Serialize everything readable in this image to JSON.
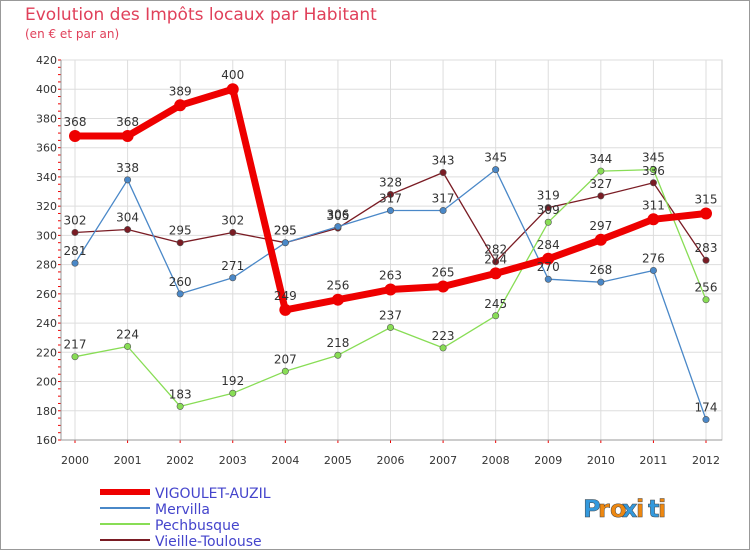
{
  "chart_data": {
    "type": "line",
    "title": "Evolution des Impôts locaux par Habitant",
    "subtitle": "(en € et par an)",
    "xlabel": "",
    "ylabel": "",
    "x": [
      "2000",
      "2001",
      "2002",
      "2003",
      "2004",
      "2005",
      "2006",
      "2007",
      "2008",
      "2009",
      "2010",
      "2011",
      "2012"
    ],
    "ylim": [
      160,
      420
    ],
    "yticks": [
      160,
      180,
      200,
      220,
      240,
      260,
      280,
      300,
      320,
      340,
      360,
      380,
      400,
      420
    ],
    "grid": true,
    "legend_position": "bottom-left",
    "series": [
      {
        "name": "Vieille-Toulouse",
        "color": "#7a1c24",
        "values": [
          302,
          304,
          295,
          302,
          295,
          305,
          328,
          343,
          282,
          319,
          327,
          336,
          283
        ]
      },
      {
        "name": "Mervilla",
        "color": "#4a88c8",
        "values": [
          281,
          338,
          260,
          271,
          295,
          306,
          317,
          317,
          345,
          270,
          268,
          276,
          174
        ]
      },
      {
        "name": "Pechbusque",
        "color": "#88dd55",
        "values": [
          217,
          224,
          183,
          192,
          207,
          218,
          237,
          223,
          245,
          309,
          344,
          345,
          256
        ]
      },
      {
        "name": "VIGOULET-AUZIL",
        "color": "#ee0000",
        "values": [
          368,
          368,
          389,
          400,
          249,
          256,
          263,
          265,
          274,
          284,
          297,
          311,
          315
        ]
      }
    ],
    "legend": [
      "VIGOULET-AUZIL",
      "Mervilla",
      "Pechbusque",
      "Vieille-Toulouse"
    ]
  },
  "colors": {
    "title": "#e0405a",
    "axis_text": "#333333",
    "label_text": "#333333",
    "legend_text": "#4444cc",
    "grid": "#dddddd",
    "tick_red": "#ee0000"
  },
  "brand": {
    "name": "Proxiti",
    "letters": [
      "P",
      "r",
      "o",
      "x",
      "i",
      "t",
      "i"
    ],
    "letter_colors": [
      "#3399dd",
      "#ee8811",
      "#ee8811",
      "#3399dd",
      "#ee8811",
      "#3399dd",
      "#ee8811"
    ]
  }
}
